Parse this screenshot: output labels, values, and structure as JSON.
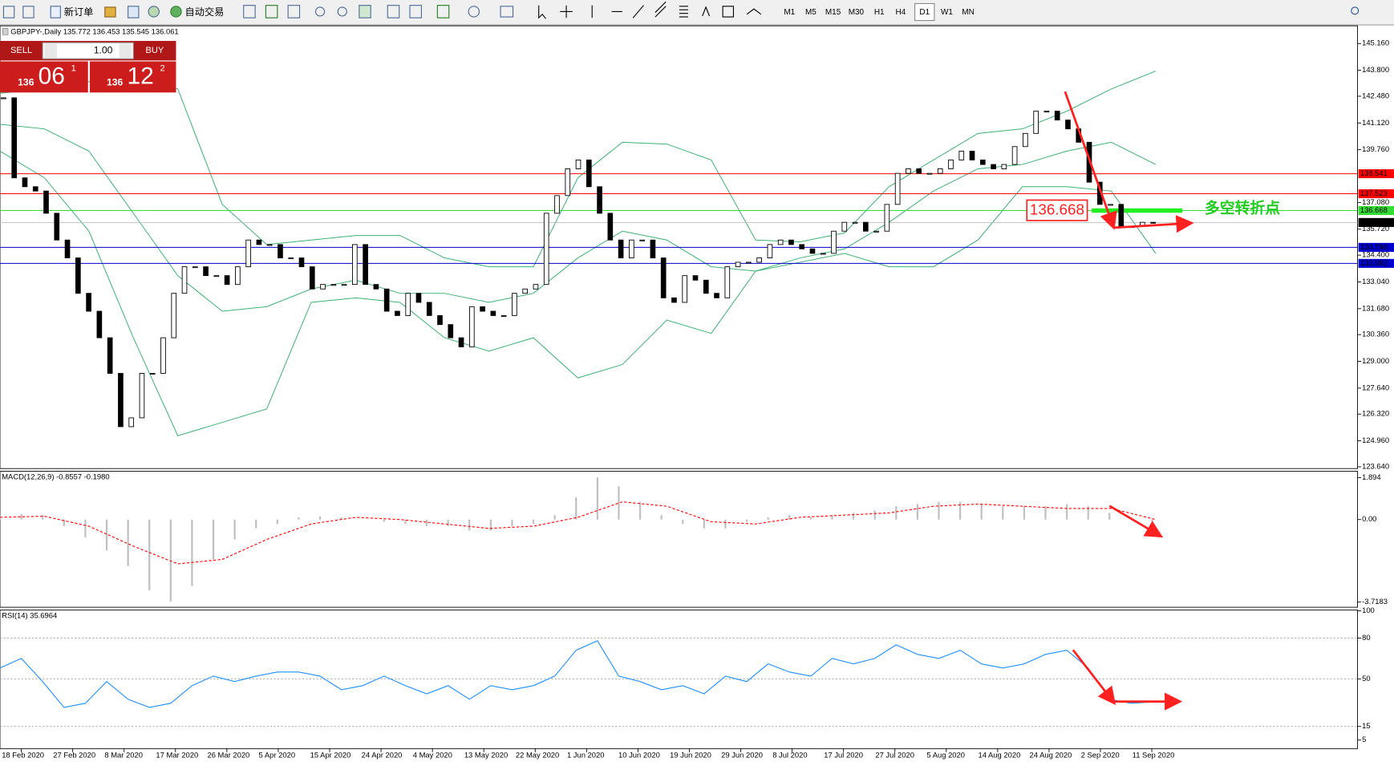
{
  "toolbar": {
    "buttons": [
      "新订单",
      "自动交易"
    ],
    "timeframes": [
      "M1",
      "M5",
      "M15",
      "M30",
      "H1",
      "H4",
      "D1",
      "W1",
      "MN"
    ]
  },
  "trade_panel": {
    "sell": "SELL",
    "buy": "BUY",
    "lot": "1.00",
    "bid_big": "136",
    "bid_main": "06",
    "bid_small": "1",
    "ask_big": "136",
    "ask_main": "12",
    "ask_small": "2"
  },
  "date_axis": [
    "18 Feb 2020",
    "27 Feb 2020",
    "8 Mar 2020",
    "17 Mar 2020",
    "26 Mar 2020",
    "5 Apr 2020",
    "15 Apr 2020",
    "24 Apr 2020",
    "4 May 2020",
    "13 May 2020",
    "22 May 2020",
    "1 Jun 2020",
    "10 Jun 2020",
    "19 Jun 2020",
    "29 Jun 2020",
    "8 Jul 2020",
    "17 Jul 2020",
    "27 Jul 2020",
    "5 Aug 2020",
    "14 Aug 2020",
    "24 Aug 2020",
    "2 Sep 2020",
    "11 Sep 2020"
  ],
  "chart_data": [
    {
      "type": "candlestick",
      "title": "GBPJPY-,Daily 135.772 136.453 135.545 136.061",
      "values": [
        142.4,
        138.33,
        137.88,
        137.66,
        136.53,
        135.17,
        134.26,
        132.46,
        131.55,
        130.2,
        128.39,
        125.68,
        126.13,
        128.39,
        128.39,
        130.2,
        132.46,
        133.81,
        133.81,
        133.36,
        133.36,
        132.91,
        133.81,
        135.17,
        134.94,
        134.94,
        134.26,
        134.26,
        133.81,
        132.68,
        132.91,
        132.91,
        132.91,
        134.94,
        132.91,
        132.68,
        131.55,
        131.33,
        132.46,
        132.0,
        131.33,
        130.87,
        130.2,
        129.74,
        131.78,
        131.55,
        131.33,
        131.33,
        132.46,
        132.68,
        132.91,
        136.53,
        137.43,
        138.79,
        139.24,
        137.88,
        136.53,
        135.17,
        134.26,
        135.17,
        135.17,
        134.26,
        132.23,
        132.0,
        133.36,
        133.13,
        132.46,
        132.23,
        133.81,
        134.04,
        134.04,
        134.26,
        134.94,
        135.17,
        134.94,
        134.72,
        134.49,
        134.49,
        135.62,
        136.07,
        136.07,
        135.62,
        135.62,
        136.98,
        138.56,
        138.79,
        138.56,
        138.56,
        138.79,
        139.24,
        139.69,
        139.24,
        139.01,
        138.79,
        139.01,
        139.92,
        140.59,
        141.72,
        141.72,
        141.27,
        140.82,
        140.14,
        138.11,
        136.98,
        136.98,
        135.85,
        135.85,
        136.07,
        136.06
      ],
      "up_color": "#ffffff",
      "down_color": "#000000",
      "bands": [
        {
          "color": "#3cb371",
          "values": [
            142.63,
            142.85,
            143.22,
            143.53,
            142.85,
            136.98,
            134.94,
            135.17,
            135.4,
            135.4,
            134.26,
            133.81,
            133.81,
            138.33,
            140.14,
            140.05,
            139.24,
            135.17,
            135.08,
            135.53,
            137.88,
            139.24,
            140.59,
            140.82,
            141.72,
            142.85,
            143.76
          ]
        },
        {
          "color": "#3cb371",
          "values": [
            141.05,
            140.82,
            139.69,
            136.53,
            133.36,
            131.55,
            131.78,
            132.68,
            133.13,
            132.46,
            132.46,
            132.0,
            132.46,
            134.26,
            135.62,
            135.17,
            133.81,
            133.59,
            134.26,
            134.72,
            136.07,
            137.66,
            138.79,
            139.01,
            139.69,
            140.14,
            139.01
          ]
        },
        {
          "color": "#3cb371",
          "values": [
            139.69,
            138.33,
            135.62,
            130.2,
            125.22,
            125.9,
            126.58,
            132.0,
            132.23,
            132.0,
            130.2,
            129.52,
            130.2,
            128.16,
            128.84,
            131.1,
            130.42,
            133.59,
            134.04,
            134.49,
            133.81,
            133.81,
            135.17,
            137.88,
            137.88,
            137.66,
            134.49
          ]
        }
      ],
      "levels": [
        {
          "value": 138.541,
          "color": "#ff0000"
        },
        {
          "value": 137.523,
          "color": "#ff0000"
        },
        {
          "value": 136.668,
          "color": "#33dd33"
        },
        {
          "value": 134.796,
          "color": "#0000cd"
        },
        {
          "value": 133.982,
          "color": "#0000cd"
        }
      ],
      "last_price": 136.061,
      "annotation": "多空转折点",
      "ylim": [
        123.55,
        146.06
      ],
      "yticks": [
        {
          "value": 145.16,
          "label": "145.160"
        },
        {
          "value": 143.8,
          "label": "143.800"
        },
        {
          "value": 142.48,
          "label": "142.480"
        },
        {
          "value": 141.12,
          "label": "141.120"
        },
        {
          "value": 139.76,
          "label": "139.760"
        },
        {
          "value": 137.08,
          "label": "137.080"
        },
        {
          "value": 135.72,
          "label": "135.720"
        },
        {
          "value": 134.4,
          "label": "134.400"
        },
        {
          "value": 133.04,
          "label": "133.040"
        },
        {
          "value": 131.68,
          "label": "131.680"
        },
        {
          "value": 130.36,
          "label": "130.360"
        },
        {
          "value": 129,
          "label": "129.000"
        },
        {
          "value": 127.64,
          "label": "127.640"
        },
        {
          "value": 126.32,
          "label": "126.320"
        },
        {
          "value": 124.96,
          "label": "124.960"
        },
        {
          "value": 123.64,
          "label": "123.640"
        }
      ]
    },
    {
      "type": "macd",
      "title": "MACD(12,26,9) -0.8557 -0.1980",
      "histogram": [
        0.2,
        0.25,
        0.2,
        -0.3,
        -0.8,
        -1.4,
        -2.1,
        -3.2,
        -3.7,
        -3.0,
        -1.8,
        -0.9,
        -0.4,
        -0.2,
        0.1,
        0.15,
        0.1,
        0.0,
        -0.1,
        -0.2,
        -0.3,
        -0.3,
        -0.5,
        -0.5,
        -0.3,
        -0.2,
        0.2,
        1.0,
        1.9,
        1.5,
        0.8,
        0.2,
        -0.2,
        -0.4,
        -0.4,
        -0.1,
        0.1,
        0.2,
        0.1,
        0.2,
        0.3,
        0.4,
        0.6,
        0.7,
        0.8,
        0.8,
        0.7,
        0.6,
        0.6,
        0.6,
        0.7,
        0.6,
        0.3,
        0.0,
        -0.3
      ],
      "histogram_color": "#c0c0c0",
      "signal": [
        0.1,
        0.15,
        -0.3,
        -1.2,
        -2.0,
        -1.8,
        -0.9,
        -0.2,
        0.1,
        0.0,
        -0.2,
        -0.4,
        -0.3,
        0.1,
        0.8,
        0.6,
        -0.1,
        -0.2,
        0.1,
        0.2,
        0.3,
        0.6,
        0.7,
        0.6,
        0.5,
        0.5,
        0.0
      ],
      "signal_color": "#ff0000",
      "ylim": [
        -3.96,
        2.18
      ],
      "yticks": [
        1.894,
        {
          "value": 0,
          "label": "0.00"
        },
        -3.7183
      ]
    },
    {
      "type": "line",
      "title": "RSI(14) 35.6964",
      "values": [
        58,
        65,
        48,
        29,
        32,
        48,
        35,
        29,
        32,
        45,
        52,
        48,
        52,
        55,
        55,
        52,
        42,
        45,
        52,
        45,
        39,
        45,
        35,
        45,
        42,
        45,
        52,
        71,
        78,
        52,
        48,
        42,
        45,
        39,
        52,
        48,
        61,
        55,
        52,
        65,
        61,
        65,
        75,
        68,
        65,
        71,
        61,
        58,
        61,
        68,
        71,
        58,
        35,
        32,
        33
      ],
      "color": "#1e90ff",
      "levels": [
        80,
        50,
        15
      ],
      "ylim": [
        0,
        100
      ],
      "yticks": [
        100,
        80,
        50,
        15,
        5
      ]
    }
  ]
}
